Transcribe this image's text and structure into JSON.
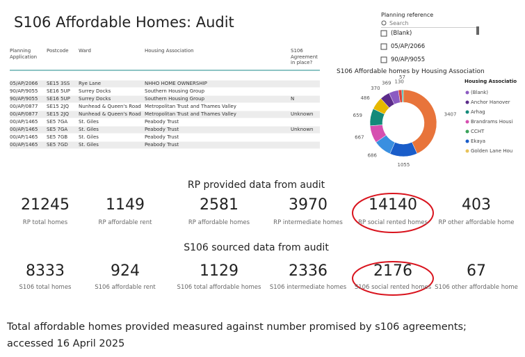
{
  "header": {
    "title": "S106 Affordable Homes: Audit"
  },
  "table": {
    "headers": [
      "Planning Application",
      "Postcode",
      "Ward",
      "Housing Association",
      "S106 Agreement in place?"
    ],
    "rows": [
      [
        "05/AP/2066",
        "SE15 3SS",
        "Rye Lane",
        "NHHO HOME OWNERSHIP",
        null
      ],
      [
        "90/AP/9055",
        "SE16 5UP",
        "Surrey Docks",
        "Southern Housing Group",
        null
      ],
      [
        "90/AP/9055",
        "SE16 5UP",
        "Surrey Docks",
        "Southern Housing Group",
        "N"
      ],
      [
        "00/AP/0877",
        "SE15 2JQ",
        "Nunhead & Queen's Road",
        "Metropolitan Trust and Thames Valley",
        null
      ],
      [
        "00/AP/0877",
        "SE15 2JQ",
        "Nunhead & Queen's Road",
        "Metropolitan Trust and Thames Valley",
        "Unknown"
      ],
      [
        "00/AP/1465",
        "SE5 7GA",
        "St. Giles",
        "Peabody Trust",
        null
      ],
      [
        "00/AP/1465",
        "SE5 7GA",
        "St. Giles",
        "Peabody Trust",
        "Unknown"
      ],
      [
        "00/AP/1465",
        "SE5 7GB",
        "St. Giles",
        "Peabody Trust",
        null
      ],
      [
        "00/AP/1465",
        "SE5 7GD",
        "St. Giles",
        "Peabody Trust",
        null
      ]
    ]
  },
  "slicer": {
    "title": "Planning reference",
    "search": "Search",
    "items": [
      "(Blank)",
      "05/AP/2066",
      "90/AP/9055"
    ]
  },
  "chart_data": {
    "type": "donut",
    "title": "S106 Affordable homes by Housing Association",
    "values": [
      3407,
      1055,
      686,
      667,
      659,
      486,
      370,
      369,
      130,
      57
    ],
    "colors": [
      "#e8743b",
      "#1a5dc9",
      "#3a8fe0",
      "#d64fb0",
      "#148a7a",
      "#e6b800",
      "#5b2b8a",
      "#8c5bc2",
      "#d9423a",
      "#2bb5a8"
    ],
    "legend_title": "Housing Associatio",
    "legend": [
      {
        "name": "(Blank)",
        "color": "#8c5bc2"
      },
      {
        "name": "Anchor Hanover",
        "color": "#5b2b8a"
      },
      {
        "name": "Arhag",
        "color": "#148a7a"
      },
      {
        "name": "Brandrams Housi",
        "color": "#d64fb0"
      },
      {
        "name": "CCHT",
        "color": "#3aa35a"
      },
      {
        "name": "Ekaya",
        "color": "#1a5dc9"
      },
      {
        "name": "Golden Lane Hou",
        "color": "#e8c35a"
      }
    ]
  },
  "sections": [
    {
      "title": "RP provided data from audit",
      "cards": [
        {
          "value": 21245,
          "label": "RP total homes"
        },
        {
          "value": 1149,
          "label": "RP affordable rent"
        },
        {
          "value": 2581,
          "label": "RP affordable homes"
        },
        {
          "value": 3970,
          "label": "RP intermediate homes"
        },
        {
          "value": 14140,
          "label": "RP social rented homes"
        },
        {
          "value": 403,
          "label": "RP other affordable home"
        }
      ]
    },
    {
      "title": "S106 sourced data from audit",
      "cards": [
        {
          "value": 8333,
          "label": "S106 total homes"
        },
        {
          "value": 924,
          "label": "S106 affordable rent"
        },
        {
          "value": 1129,
          "label": "S106 total affordable homes"
        },
        {
          "value": 2336,
          "label": "S106 intermediate homes"
        },
        {
          "value": 2176,
          "label": "S106 social rented homes"
        },
        {
          "value": 67,
          "label": "S106 other affordable home"
        }
      ]
    }
  ],
  "caption": [
    "Total affordable homes provided measured against number promised by s106 agreements;",
    "accessed 16 April 2025"
  ]
}
